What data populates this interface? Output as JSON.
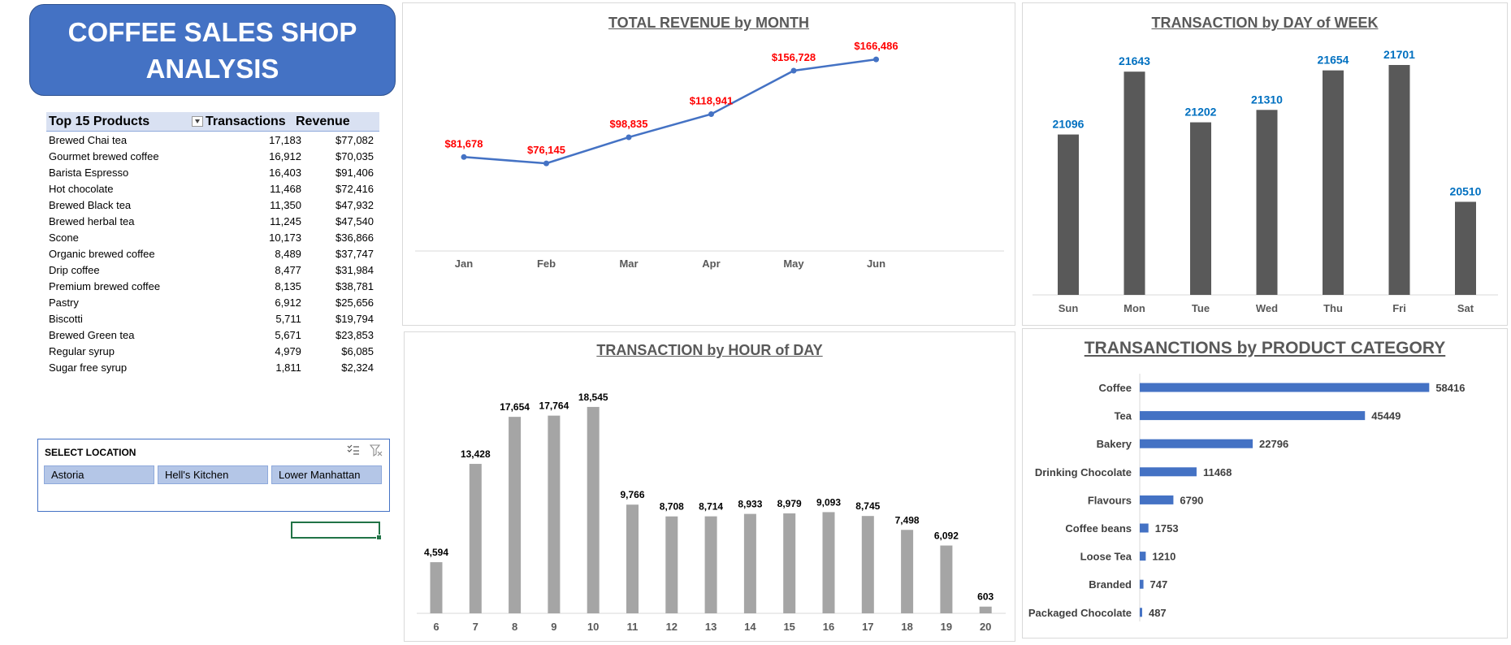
{
  "dashboard": {
    "title": "COFFEE SALES SHOP ANALYSIS",
    "accent_color": "#4472c4",
    "label_red": "#ff0000",
    "label_blue": "#0070c0",
    "bar_dark": "#595959",
    "bar_gray": "#a5a5a5"
  },
  "pivot": {
    "headers": {
      "product": "Top 15 Products",
      "transactions": "Transactions",
      "revenue": "Revenue"
    },
    "filter_icon": "sort-filter-icon",
    "rows": [
      {
        "product": "Brewed Chai tea",
        "transactions": "17,183",
        "revenue": "$77,082"
      },
      {
        "product": "Gourmet brewed coffee",
        "transactions": "16,912",
        "revenue": "$70,035"
      },
      {
        "product": "Barista Espresso",
        "transactions": "16,403",
        "revenue": "$91,406"
      },
      {
        "product": "Hot chocolate",
        "transactions": "11,468",
        "revenue": "$72,416"
      },
      {
        "product": "Brewed Black tea",
        "transactions": "11,350",
        "revenue": "$47,932"
      },
      {
        "product": "Brewed herbal tea",
        "transactions": "11,245",
        "revenue": "$47,540"
      },
      {
        "product": "Scone",
        "transactions": "10,173",
        "revenue": "$36,866"
      },
      {
        "product": "Organic brewed coffee",
        "transactions": "8,489",
        "revenue": "$37,747"
      },
      {
        "product": "Drip coffee",
        "transactions": "8,477",
        "revenue": "$31,984"
      },
      {
        "product": "Premium brewed coffee",
        "transactions": "8,135",
        "revenue": "$38,781"
      },
      {
        "product": "Pastry",
        "transactions": "6,912",
        "revenue": "$25,656"
      },
      {
        "product": "Biscotti",
        "transactions": "5,711",
        "revenue": "$19,794"
      },
      {
        "product": "Brewed Green tea",
        "transactions": "5,671",
        "revenue": "$23,853"
      },
      {
        "product": "Regular syrup",
        "transactions": "4,979",
        "revenue": "$6,085"
      },
      {
        "product": "Sugar free syrup",
        "transactions": "1,811",
        "revenue": "$2,324"
      }
    ]
  },
  "slicer": {
    "title": "SELECT LOCATION",
    "icons": [
      "multi-select-icon",
      "clear-filter-icon"
    ],
    "items": [
      "Astoria",
      "Hell's Kitchen",
      "Lower Manhattan"
    ]
  },
  "chart_data": [
    {
      "id": "month",
      "type": "line",
      "title": "TOTAL REVENUE by MONTH",
      "categories": [
        "Jan",
        "Feb",
        "Mar",
        "Apr",
        "May",
        "Jun"
      ],
      "values": [
        81678,
        76145,
        98835,
        118941,
        156728,
        166486
      ],
      "labels": [
        "$81,678",
        "$76,145",
        "$98,835",
        "$118,941",
        "$156,728",
        "$166,486"
      ],
      "ylim": [
        0,
        180000
      ],
      "grid": false,
      "color": "#4472c4",
      "label_color": "#ff0000"
    },
    {
      "id": "dow",
      "type": "bar",
      "title": "TRANSACTION by DAY of WEEK",
      "categories": [
        "Sun",
        "Mon",
        "Tue",
        "Wed",
        "Thu",
        "Fri",
        "Sat"
      ],
      "values": [
        21096,
        21643,
        21202,
        21310,
        21654,
        21701,
        20510
      ],
      "labels": [
        "21096",
        "21643",
        "21202",
        "21310",
        "21654",
        "21701",
        "20510"
      ],
      "ylim": [
        19700,
        21800
      ],
      "grid": false,
      "color": "#595959",
      "label_color": "#0070c0"
    },
    {
      "id": "hour",
      "type": "bar",
      "title": "TRANSACTION by HOUR of DAY",
      "categories": [
        "6",
        "7",
        "8",
        "9",
        "10",
        "11",
        "12",
        "13",
        "14",
        "15",
        "16",
        "17",
        "18",
        "19",
        "20"
      ],
      "values": [
        4594,
        13428,
        17654,
        17764,
        18545,
        9766,
        8708,
        8714,
        8933,
        8979,
        9093,
        8745,
        7498,
        6092,
        603
      ],
      "labels": [
        "4,594",
        "13,428",
        "17,654",
        "17,764",
        "18,545",
        "9,766",
        "8,708",
        "8,714",
        "8,933",
        "8,979",
        "9,093",
        "8,745",
        "7,498",
        "6,092",
        "603"
      ],
      "ylim": [
        0,
        20000
      ],
      "grid": false,
      "color": "#a5a5a5",
      "label_color": "#000000"
    },
    {
      "id": "cat",
      "type": "bar",
      "orientation": "horizontal",
      "title": "TRANSANCTIONS by PRODUCT CATEGORY",
      "categories": [
        "Coffee",
        "Tea",
        "Bakery",
        "Drinking Chocolate",
        "Flavours",
        "Coffee beans",
        "Loose Tea",
        "Branded",
        "Packaged Chocolate"
      ],
      "values": [
        58416,
        45449,
        22796,
        11468,
        6790,
        1753,
        1210,
        747,
        487
      ],
      "labels": [
        "58416",
        "45449",
        "22796",
        "11468",
        "6790",
        "1753",
        "1210",
        "747",
        "487"
      ],
      "xlim": [
        0,
        60000
      ],
      "grid": false,
      "color": "#4472c4",
      "label_color": "#404040"
    }
  ]
}
